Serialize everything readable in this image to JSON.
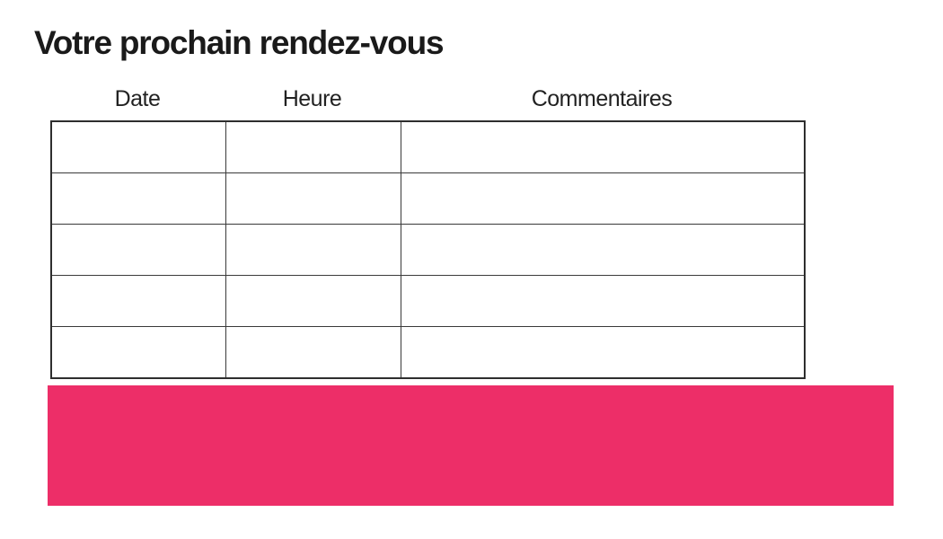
{
  "page": {
    "title": "Votre prochain rendez-vous"
  },
  "table": {
    "columns": [
      {
        "key": "date",
        "label": "Date"
      },
      {
        "key": "heure",
        "label": "Heure"
      },
      {
        "key": "commentaires",
        "label": "Commentaires"
      }
    ],
    "rows": [
      {
        "date": "",
        "heure": "",
        "commentaires": ""
      },
      {
        "date": "",
        "heure": "",
        "commentaires": ""
      },
      {
        "date": "",
        "heure": "",
        "commentaires": ""
      },
      {
        "date": "",
        "heure": "",
        "commentaires": ""
      },
      {
        "date": "",
        "heure": "",
        "commentaires": ""
      }
    ]
  },
  "colors": {
    "accent_pink": "#ED2E68",
    "table_border": "#3a3a3a",
    "title_text": "#1a1a1a",
    "header_text": "#222222"
  }
}
